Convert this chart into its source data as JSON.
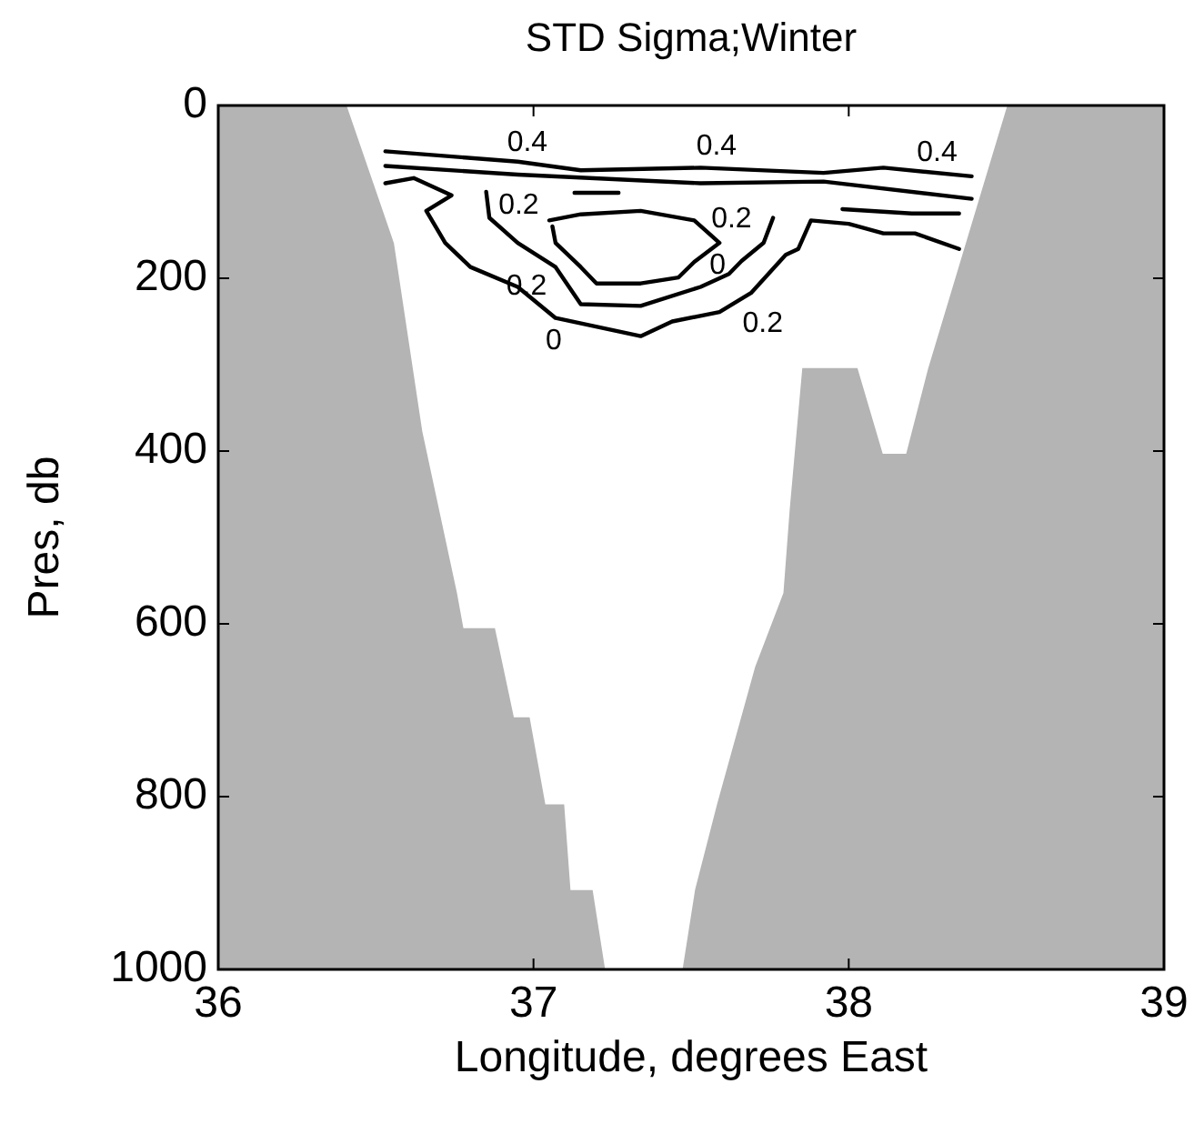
{
  "chart_data": {
    "type": "line",
    "title": "STD Sigma;Winter",
    "xlabel": "Longitude, degrees East",
    "ylabel": "Pres, db",
    "xlim": [
      36,
      39
    ],
    "xticks": [
      36,
      37,
      38,
      39
    ],
    "ylim": [
      1000,
      0
    ],
    "yticks": [
      0,
      200,
      400,
      600,
      800,
      1000
    ],
    "grid": false,
    "legend": false,
    "marker": "none",
    "line_style": "solid",
    "series": [
      {
        "type": "area",
        "color": "#ffffff",
        "x": [
          36.41,
          36.56,
          36.65,
          36.76,
          36.78,
          36.88,
          36.94,
          36.99,
          37.04,
          37.1,
          37.12,
          37.19,
          37.23,
          37.47,
          37.51,
          37.58,
          37.7,
          37.79,
          37.81,
          37.85,
          38.03,
          38.11,
          38.18,
          38.25,
          38.5
        ],
        "values": [
          0,
          159,
          377,
          564,
          604,
          604,
          707,
          707,
          808,
          808,
          907,
          907,
          1000,
          1000,
          907,
          808,
          650,
          564,
          467,
          303,
          303,
          402,
          402,
          303,
          0
        ]
      },
      {
        "color": "#000000",
        "x": [
          36.53,
          36.95,
          37.15,
          37.53,
          37.92,
          38.11,
          38.39
        ],
        "values": [
          53,
          65,
          75,
          72,
          78,
          72,
          82
        ]
      },
      {
        "color": "#000000",
        "x": [
          36.53,
          36.95,
          37.53,
          37.92,
          38.39
        ],
        "values": [
          70,
          80,
          90,
          88,
          108
        ]
      },
      {
        "color": "#000000",
        "x": [
          36.53,
          36.62,
          36.74,
          36.66,
          36.72,
          36.8,
          36.95,
          37.07,
          37.34,
          37.44,
          37.59,
          37.69,
          37.8,
          37.84,
          37.88,
          38,
          38.11,
          38.21,
          38.35
        ],
        "values": [
          90,
          84,
          104,
          122,
          159,
          187,
          210,
          246,
          267,
          250,
          239,
          217,
          173,
          166,
          133,
          137,
          148,
          148,
          166
        ]
      },
      {
        "color": "#000000",
        "x": [
          36.85,
          36.86,
          36.95,
          37.07,
          37.15,
          37.34,
          37.53,
          37.62,
          37.66,
          37.73,
          37.76
        ],
        "values": [
          100,
          130,
          159,
          187,
          230,
          232,
          210,
          195,
          180,
          159,
          130
        ]
      },
      {
        "color": "#000000",
        "x": [
          37.98,
          38.2,
          38.35
        ],
        "values": [
          120,
          125,
          125
        ]
      },
      {
        "color": "#000000",
        "x": [
          37.05,
          37.15,
          37.34,
          37.51,
          37.59,
          37.51,
          37.46,
          37.34,
          37.2,
          37.15,
          37.07,
          37.06
        ],
        "values": [
          133,
          126,
          122,
          133,
          159,
          181,
          199,
          206,
          206,
          187,
          159,
          140
        ]
      },
      {
        "color": "#000000",
        "x": [
          37.13,
          37.27
        ],
        "values": [
          101,
          101
        ]
      }
    ],
    "annotations": [
      {
        "text": "0.4",
        "x": 37.0,
        "y": 67
      },
      {
        "text": "0.4",
        "x": 37.6,
        "y": 72
      },
      {
        "text": "0.4",
        "x": 38.3,
        "y": 79
      },
      {
        "text": "0.2",
        "x": 36.86,
        "y": 115
      },
      {
        "text": "0.2",
        "x": 37.76,
        "y": 130
      },
      {
        "text": "0.2",
        "x": 37.11,
        "y": 208
      },
      {
        "text": "0",
        "x": 37.07,
        "y": 246
      },
      {
        "text": "0",
        "x": 37.59,
        "y": 159
      },
      {
        "text": "0.2",
        "x": 37.64,
        "y": 228
      }
    ]
  }
}
